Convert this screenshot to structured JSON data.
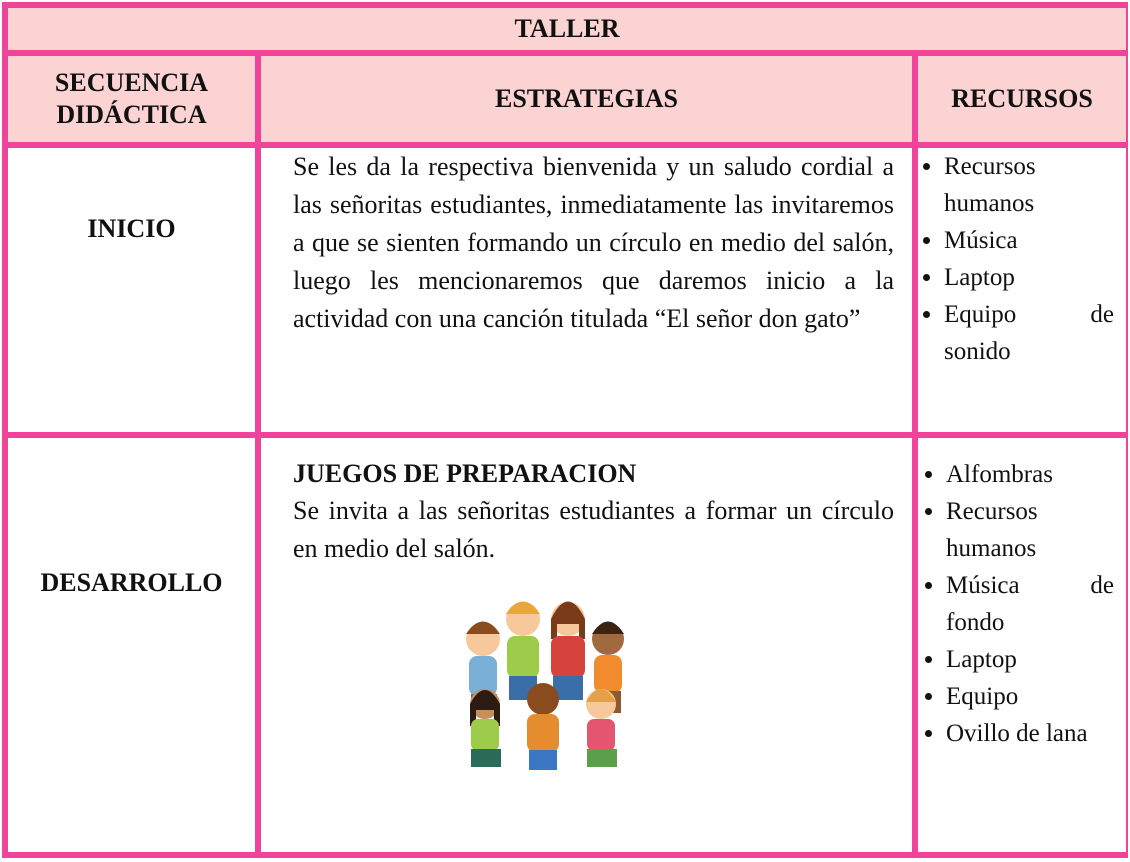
{
  "header": {
    "title": "TALLER"
  },
  "table": {
    "headers": [
      "SECUENCIA DIDÁCTICA",
      "ESTRATEGIAS",
      "RECURSOS"
    ],
    "rows": [
      {
        "stage": "INICIO",
        "strategy_text": "Se les da la respectiva bienvenida y un saludo cordial a las señoritas estudiantes, inmediatamente las invitaremos a que se sienten formando un círculo en medio del salón, luego les mencionaremos que daremos inicio a la actividad con una canción titulada “El señor don gato”",
        "resources": [
          "Recursos humanos",
          "Música",
          "Laptop",
          "Equipo de sonido"
        ]
      },
      {
        "stage": "DESARROLLO",
        "strategy_heading": "JUEGOS DE PREPARACION",
        "strategy_text": "Se invita a las señoritas estudiantes a formar un círculo en medio del salón.",
        "resources": [
          "Alfombras",
          "Recursos humanos",
          "Música de fondo",
          "Laptop",
          "Equipo",
          "Ovillo de lana"
        ]
      }
    ]
  }
}
